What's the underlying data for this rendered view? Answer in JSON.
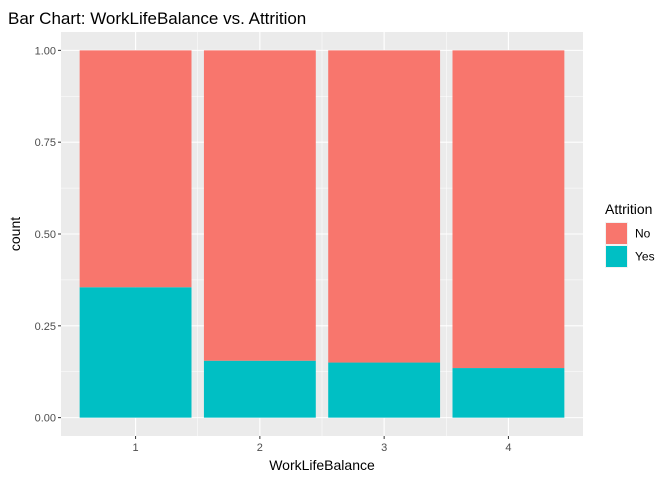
{
  "chart_data": {
    "type": "bar",
    "stacked": true,
    "title": "Bar Chart: WorkLifeBalance vs. Attrition",
    "xlabel": "WorkLifeBalance",
    "ylabel": "count",
    "categories": [
      "1",
      "2",
      "3",
      "4"
    ],
    "ylim": [
      0,
      1
    ],
    "yticks": [
      0,
      0.25,
      0.5,
      0.75,
      1
    ],
    "ytick_labels": [
      "0.00",
      "0.25",
      "0.50",
      "0.75",
      "1.00"
    ],
    "grid": true,
    "legend": {
      "title": "Attrition",
      "position": "right"
    },
    "series": [
      {
        "name": "No",
        "values": [
          0.645,
          0.845,
          0.85,
          0.865
        ],
        "color": "#F8766D"
      },
      {
        "name": "Yes",
        "values": [
          0.355,
          0.155,
          0.15,
          0.135
        ],
        "color": "#00BFC4"
      }
    ],
    "stack_order": [
      "Yes",
      "No"
    ],
    "panel_background": "#EBEBEB",
    "grid_color": "#FFFFFF"
  }
}
